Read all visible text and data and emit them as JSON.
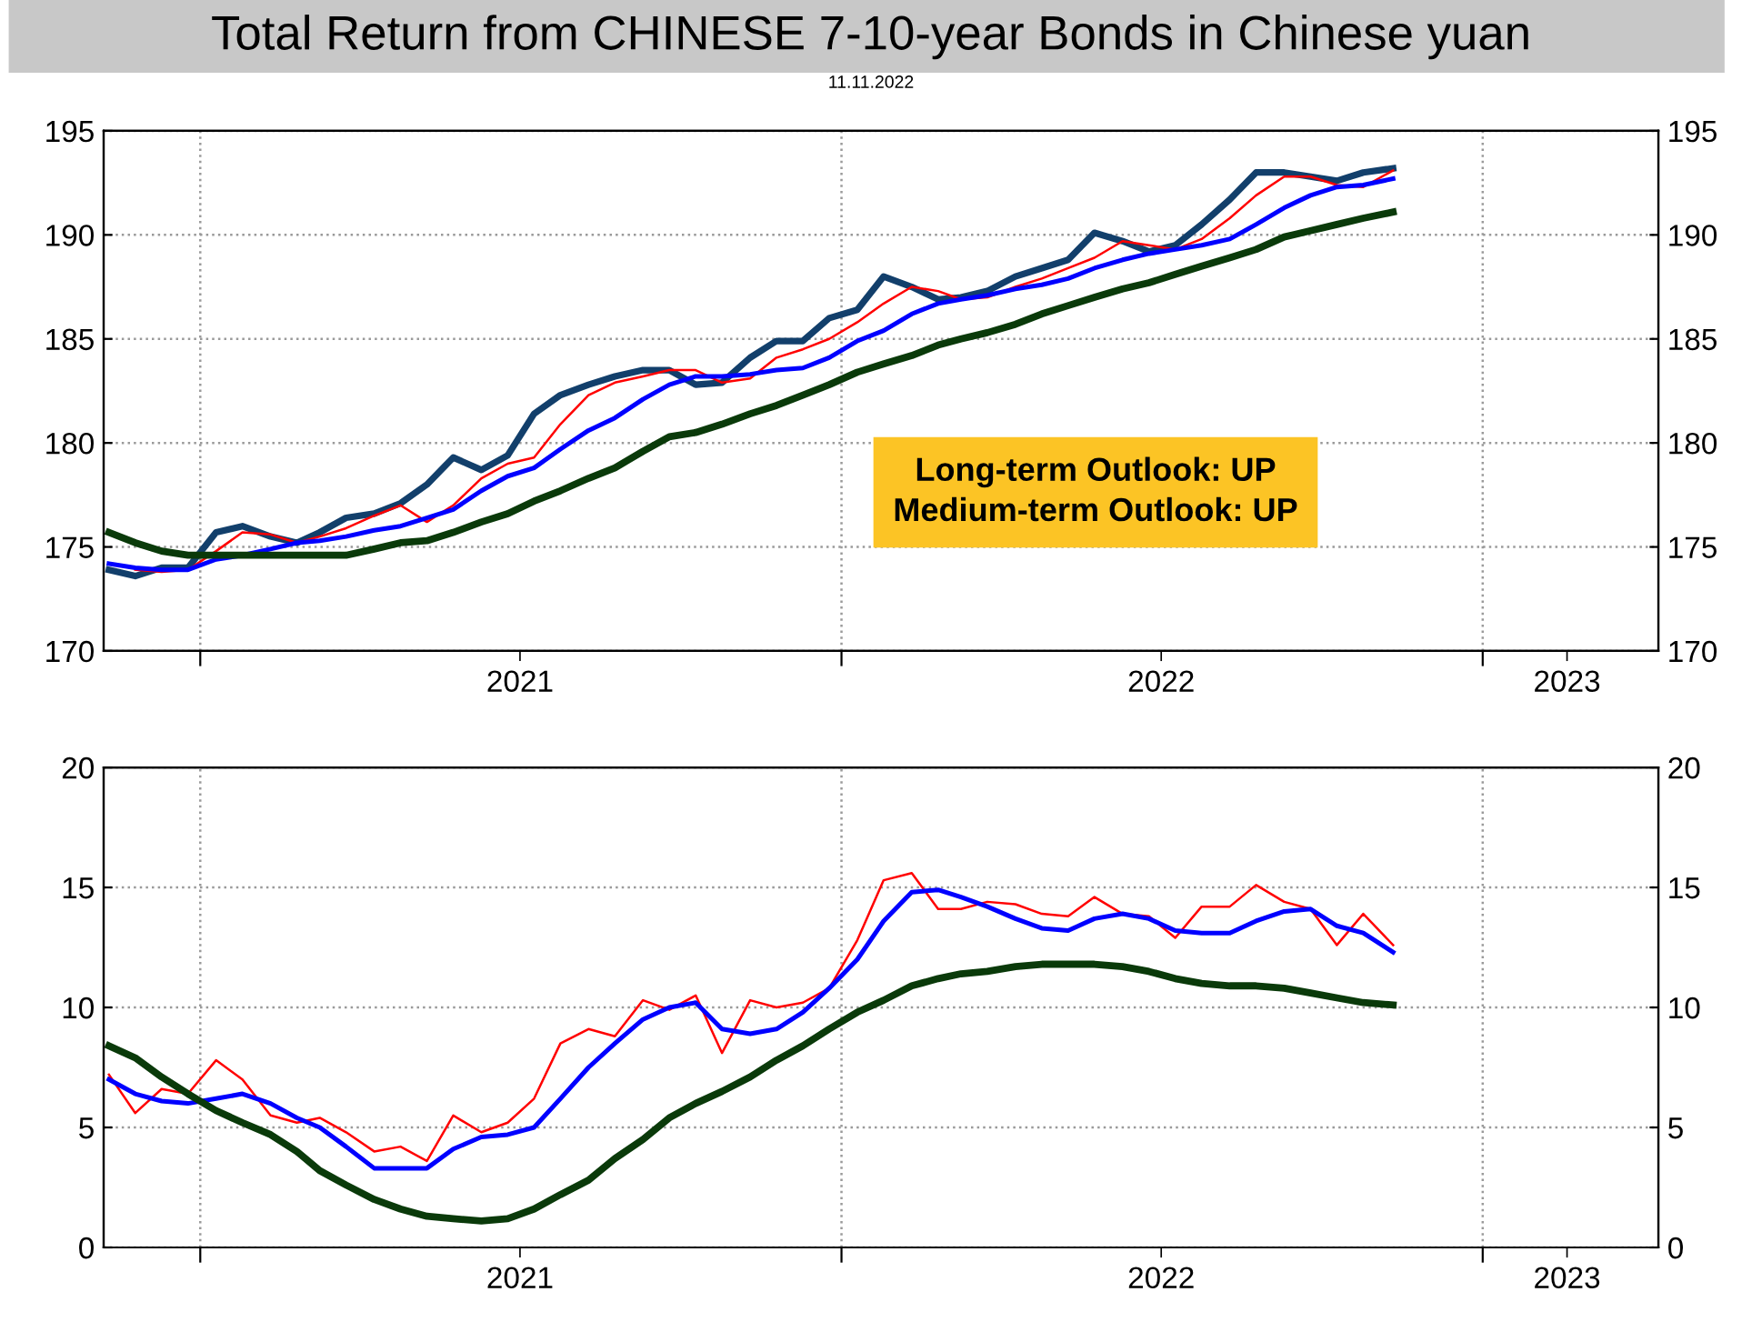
{
  "chart_data": [
    {
      "type": "line",
      "title": "Total Return from CHINESE 7-10-year Bonds in Chinese yuan",
      "subtitle": "11.11.2022",
      "annotations": [
        "Long-term Outlook: UP\nMedium-term Outlook: UP"
      ],
      "x": [
        "2020-11-10",
        "2020-11-25",
        "2020-12-10",
        "2020-12-25",
        "2021-01-10",
        "2021-01-25",
        "2021-02-10",
        "2021-02-25",
        "2021-03-10",
        "2021-03-25",
        "2021-04-10",
        "2021-04-25",
        "2021-05-10",
        "2021-05-25",
        "2021-06-10",
        "2021-06-25",
        "2021-07-10",
        "2021-07-25",
        "2021-08-10",
        "2021-08-25",
        "2021-09-10",
        "2021-09-25",
        "2021-10-10",
        "2021-10-25",
        "2021-11-10",
        "2021-11-25",
        "2021-12-10",
        "2021-12-25",
        "2022-01-10",
        "2022-01-25",
        "2022-02-10",
        "2022-02-25",
        "2022-03-10",
        "2022-03-25",
        "2022-04-10",
        "2022-04-25",
        "2022-05-10",
        "2022-05-25",
        "2022-06-10",
        "2022-06-25",
        "2022-07-10",
        "2022-07-25",
        "2022-08-10",
        "2022-08-25",
        "2022-09-10",
        "2022-09-25",
        "2022-10-10",
        "2022-10-25",
        "2022-11-11"
      ],
      "series": [
        {
          "color": "#123f6b",
          "values": [
            173.9,
            173.6,
            174.0,
            174.0,
            175.7,
            176.0,
            175.5,
            175.2,
            175.7,
            176.4,
            176.6,
            177.1,
            178.0,
            179.3,
            178.7,
            179.4,
            181.4,
            182.3,
            182.8,
            183.2,
            183.5,
            183.5,
            182.8,
            182.9,
            184.1,
            184.9,
            184.9,
            186.0,
            186.4,
            188.0,
            187.5,
            186.9,
            187.0,
            187.3,
            188.0,
            188.4,
            188.8,
            190.1,
            189.7,
            189.2,
            189.5,
            190.5,
            191.7,
            193.0,
            193.0,
            192.8,
            192.6,
            193.0,
            193.2
          ]
        },
        {
          "color": "#ff0000",
          "values": [
            null,
            173.9,
            173.8,
            173.9,
            174.8,
            175.7,
            175.6,
            175.2,
            175.5,
            175.9,
            176.5,
            177.0,
            176.2,
            177.0,
            178.3,
            179.0,
            179.3,
            180.9,
            182.3,
            182.9,
            183.2,
            183.5,
            183.5,
            182.9,
            183.1,
            184.1,
            184.5,
            185.0,
            185.8,
            186.7,
            187.5,
            187.3,
            186.9,
            187.0,
            187.5,
            187.9,
            188.4,
            188.9,
            189.7,
            189.5,
            189.3,
            189.8,
            190.8,
            191.9,
            192.8,
            192.8,
            192.4,
            192.3,
            193.1
          ]
        },
        {
          "color": "#0000ff",
          "values": [
            174.2,
            174.0,
            173.9,
            173.9,
            174.4,
            174.6,
            174.9,
            175.2,
            175.3,
            175.5,
            175.8,
            176.0,
            176.4,
            176.8,
            177.7,
            178.4,
            178.8,
            179.7,
            180.6,
            181.2,
            182.1,
            182.8,
            183.2,
            183.2,
            183.3,
            183.5,
            183.6,
            184.1,
            184.9,
            185.4,
            186.2,
            186.7,
            186.9,
            187.1,
            187.4,
            187.6,
            187.9,
            188.4,
            188.8,
            189.1,
            189.3,
            189.5,
            189.8,
            190.5,
            191.3,
            191.9,
            192.3,
            192.4,
            192.7
          ]
        },
        {
          "color": "#0a3a0a",
          "values": [
            175.7,
            175.2,
            174.8,
            174.6,
            174.6,
            174.6,
            174.6,
            174.6,
            174.6,
            174.6,
            174.9,
            175.2,
            175.3,
            175.7,
            176.2,
            176.6,
            177.2,
            177.7,
            178.3,
            178.8,
            179.6,
            180.3,
            180.5,
            180.9,
            181.4,
            181.8,
            182.3,
            182.8,
            183.4,
            183.8,
            184.2,
            184.7,
            185.0,
            185.3,
            185.7,
            186.2,
            186.6,
            187.0,
            187.4,
            187.7,
            188.1,
            188.5,
            188.9,
            189.3,
            189.9,
            190.2,
            190.5,
            190.8,
            191.1
          ]
        }
      ],
      "xlim": [
        "2020-11-07",
        "2023-04-11"
      ],
      "xticks": [
        {
          "value": "2021-01-01",
          "label": null
        },
        {
          "value": "2021-07-02",
          "label": "2021"
        },
        {
          "value": "2022-01-01",
          "label": null
        },
        {
          "value": "2022-07-02",
          "label": "2022"
        },
        {
          "value": "2023-01-01",
          "label": null
        },
        {
          "value": "2023-02-18",
          "label": "2023"
        }
      ],
      "ylim": [
        170,
        195
      ],
      "yticks": [
        170,
        175,
        180,
        185,
        190,
        195
      ],
      "y2lim": [
        170,
        195
      ],
      "y2ticks": [
        170,
        175,
        180,
        185,
        190,
        195
      ],
      "grid": true,
      "line_style": "solid"
    },
    {
      "type": "line",
      "x": [
        "2020-11-10",
        "2020-11-25",
        "2020-12-10",
        "2020-12-25",
        "2021-01-10",
        "2021-01-25",
        "2021-02-10",
        "2021-02-25",
        "2021-03-10",
        "2021-03-25",
        "2021-04-10",
        "2021-04-25",
        "2021-05-10",
        "2021-05-25",
        "2021-06-10",
        "2021-06-25",
        "2021-07-10",
        "2021-07-25",
        "2021-08-10",
        "2021-08-25",
        "2021-09-10",
        "2021-09-25",
        "2021-10-10",
        "2021-10-25",
        "2021-11-10",
        "2021-11-25",
        "2021-12-10",
        "2021-12-25",
        "2022-01-10",
        "2022-01-25",
        "2022-02-10",
        "2022-02-25",
        "2022-03-10",
        "2022-03-25",
        "2022-04-10",
        "2022-04-25",
        "2022-05-10",
        "2022-05-25",
        "2022-06-10",
        "2022-06-25",
        "2022-07-10",
        "2022-07-25",
        "2022-08-10",
        "2022-08-25",
        "2022-09-10",
        "2022-09-25",
        "2022-10-10",
        "2022-10-25",
        "2022-11-11"
      ],
      "series": [
        {
          "color": "#ff0000",
          "values": [
            7.2,
            5.6,
            6.6,
            6.4,
            7.8,
            7.0,
            5.5,
            5.2,
            5.4,
            4.8,
            4.0,
            4.2,
            3.6,
            5.5,
            4.8,
            5.2,
            6.2,
            8.5,
            9.1,
            8.8,
            10.3,
            9.9,
            10.5,
            8.1,
            10.3,
            10.0,
            10.2,
            10.8,
            12.8,
            15.3,
            15.6,
            14.1,
            14.1,
            14.4,
            14.3,
            13.9,
            13.8,
            14.6,
            13.9,
            13.8,
            12.9,
            14.2,
            14.2,
            15.1,
            14.4,
            14.1,
            12.6,
            13.9,
            12.6
          ]
        },
        {
          "color": "#0000ff",
          "values": [
            7.0,
            6.4,
            6.1,
            6.0,
            6.2,
            6.4,
            6.0,
            5.4,
            5.0,
            4.2,
            3.3,
            3.3,
            3.3,
            4.1,
            4.6,
            4.7,
            5.0,
            6.2,
            7.5,
            8.5,
            9.5,
            10.0,
            10.2,
            9.1,
            8.9,
            9.1,
            9.8,
            10.8,
            12.0,
            13.6,
            14.8,
            14.9,
            14.6,
            14.2,
            13.7,
            13.3,
            13.2,
            13.7,
            13.9,
            13.7,
            13.2,
            13.1,
            13.1,
            13.6,
            14.0,
            14.1,
            13.4,
            13.1,
            12.3
          ]
        },
        {
          "color": "#0a3a0a",
          "values": [
            8.4,
            7.9,
            7.1,
            6.4,
            5.7,
            5.2,
            4.7,
            4.0,
            3.2,
            2.6,
            2.0,
            1.6,
            1.3,
            1.2,
            1.1,
            1.2,
            1.6,
            2.2,
            2.8,
            3.7,
            4.5,
            5.4,
            6.0,
            6.5,
            7.1,
            7.8,
            8.4,
            9.1,
            9.8,
            10.3,
            10.9,
            11.2,
            11.4,
            11.5,
            11.7,
            11.8,
            11.8,
            11.8,
            11.7,
            11.5,
            11.2,
            11.0,
            10.9,
            10.9,
            10.8,
            10.6,
            10.4,
            10.2,
            10.1
          ]
        }
      ],
      "xlim": [
        "2020-11-07",
        "2023-04-11"
      ],
      "xticks": [
        {
          "value": "2021-01-01",
          "label": null
        },
        {
          "value": "2021-07-02",
          "label": "2021"
        },
        {
          "value": "2022-01-01",
          "label": null
        },
        {
          "value": "2022-07-02",
          "label": "2022"
        },
        {
          "value": "2023-01-01",
          "label": null
        },
        {
          "value": "2023-02-18",
          "label": "2023"
        }
      ],
      "ylim": [
        0,
        20
      ],
      "yticks": [
        0,
        5,
        10,
        15,
        20
      ],
      "y2lim": [
        0,
        20
      ],
      "y2ticks": [
        0,
        5,
        10,
        15,
        20
      ],
      "grid": true,
      "line_style": "solid"
    }
  ]
}
